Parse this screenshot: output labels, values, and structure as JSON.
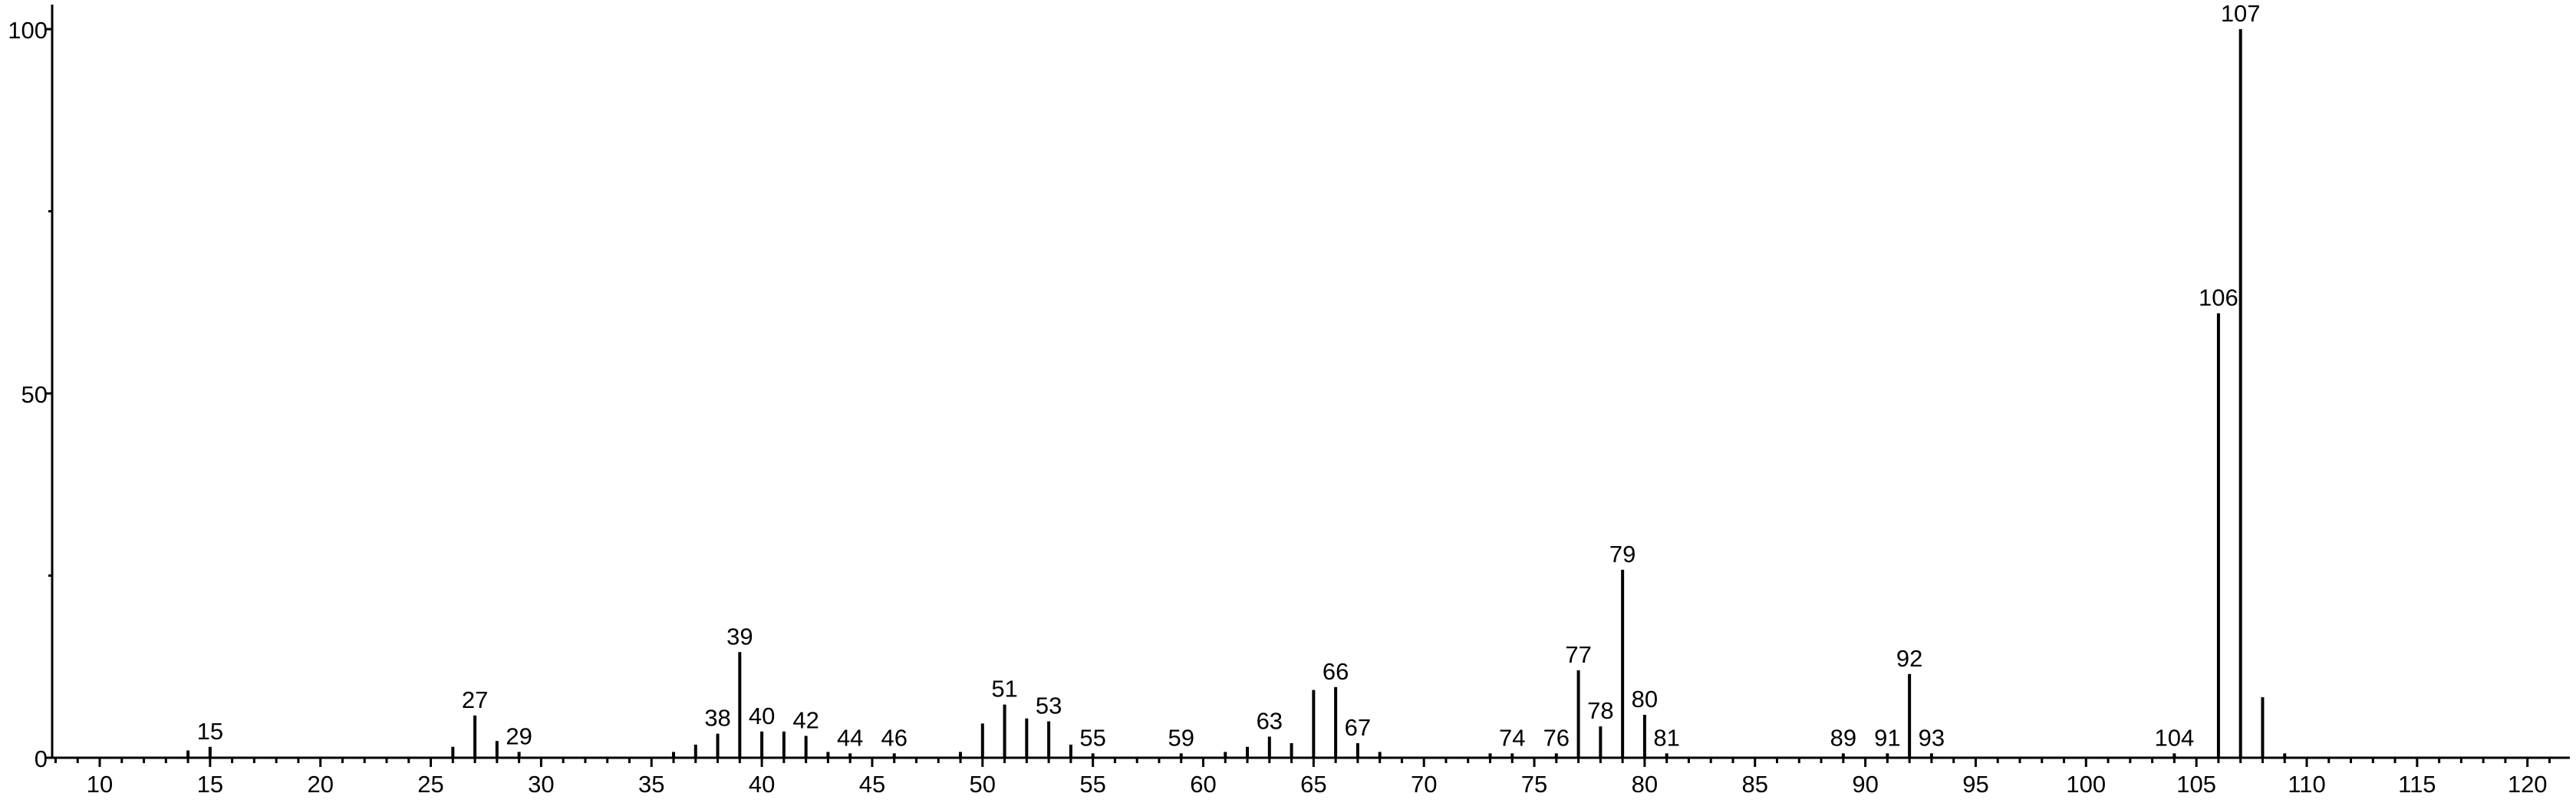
{
  "chart_data": {
    "type": "bar",
    "title": "",
    "xlabel": "",
    "ylabel": "",
    "xlim": [
      8,
      122
    ],
    "ylim": [
      0,
      102
    ],
    "grid": false,
    "legend": "none",
    "bar_color": "#000000",
    "x_major_ticks": [
      10,
      15,
      20,
      25,
      30,
      35,
      40,
      45,
      50,
      55,
      60,
      65,
      70,
      75,
      80,
      85,
      90,
      95,
      100,
      105,
      110,
      115,
      120
    ],
    "x_minor_step": 1,
    "y_major_ticks": [
      0,
      50,
      100
    ],
    "y_minor_ticks": [
      25,
      75
    ],
    "peaks": [
      {
        "mz": 14,
        "intensity": 1.0,
        "label": ""
      },
      {
        "mz": 15,
        "intensity": 1.5,
        "label": "15"
      },
      {
        "mz": 26,
        "intensity": 1.5,
        "label": ""
      },
      {
        "mz": 27,
        "intensity": 5.8,
        "label": "27"
      },
      {
        "mz": 28,
        "intensity": 2.3,
        "label": ""
      },
      {
        "mz": 29,
        "intensity": 0.8,
        "label": "29"
      },
      {
        "mz": 36,
        "intensity": 0.8,
        "label": ""
      },
      {
        "mz": 37,
        "intensity": 1.8,
        "label": ""
      },
      {
        "mz": 38,
        "intensity": 3.3,
        "label": "38"
      },
      {
        "mz": 39,
        "intensity": 14.5,
        "label": "39"
      },
      {
        "mz": 40,
        "intensity": 3.6,
        "label": "40"
      },
      {
        "mz": 41,
        "intensity": 3.6,
        "label": ""
      },
      {
        "mz": 42,
        "intensity": 3.0,
        "label": "42"
      },
      {
        "mz": 43,
        "intensity": 0.8,
        "label": ""
      },
      {
        "mz": 44,
        "intensity": 0.6,
        "label": "44"
      },
      {
        "mz": 46,
        "intensity": 0.6,
        "label": "46"
      },
      {
        "mz": 49,
        "intensity": 0.8,
        "label": ""
      },
      {
        "mz": 50,
        "intensity": 4.7,
        "label": ""
      },
      {
        "mz": 51,
        "intensity": 7.3,
        "label": "51"
      },
      {
        "mz": 52,
        "intensity": 5.4,
        "label": ""
      },
      {
        "mz": 53,
        "intensity": 5.0,
        "label": "53"
      },
      {
        "mz": 54,
        "intensity": 1.8,
        "label": ""
      },
      {
        "mz": 55,
        "intensity": 0.6,
        "label": "55"
      },
      {
        "mz": 59,
        "intensity": 0.6,
        "label": "59"
      },
      {
        "mz": 61,
        "intensity": 0.8,
        "label": ""
      },
      {
        "mz": 62,
        "intensity": 1.5,
        "label": ""
      },
      {
        "mz": 63,
        "intensity": 2.9,
        "label": "63"
      },
      {
        "mz": 64,
        "intensity": 2.0,
        "label": ""
      },
      {
        "mz": 65,
        "intensity": 9.3,
        "label": ""
      },
      {
        "mz": 66,
        "intensity": 9.7,
        "label": "66"
      },
      {
        "mz": 67,
        "intensity": 2.0,
        "label": "67"
      },
      {
        "mz": 68,
        "intensity": 0.8,
        "label": ""
      },
      {
        "mz": 73,
        "intensity": 0.6,
        "label": ""
      },
      {
        "mz": 74,
        "intensity": 0.6,
        "label": "74"
      },
      {
        "mz": 76,
        "intensity": 0.6,
        "label": "76"
      },
      {
        "mz": 77,
        "intensity": 12.0,
        "label": "77"
      },
      {
        "mz": 78,
        "intensity": 4.3,
        "label": "78"
      },
      {
        "mz": 79,
        "intensity": 25.8,
        "label": "79"
      },
      {
        "mz": 80,
        "intensity": 5.9,
        "label": "80"
      },
      {
        "mz": 81,
        "intensity": 0.6,
        "label": "81"
      },
      {
        "mz": 89,
        "intensity": 0.6,
        "label": "89"
      },
      {
        "mz": 91,
        "intensity": 0.6,
        "label": "91"
      },
      {
        "mz": 92,
        "intensity": 11.5,
        "label": "92"
      },
      {
        "mz": 93,
        "intensity": 0.6,
        "label": "93"
      },
      {
        "mz": 104,
        "intensity": 0.6,
        "label": "104"
      },
      {
        "mz": 106,
        "intensity": 61.0,
        "label": "106"
      },
      {
        "mz": 107,
        "intensity": 100.0,
        "label": "107"
      },
      {
        "mz": 108,
        "intensity": 8.3,
        "label": ""
      },
      {
        "mz": 109,
        "intensity": 0.6,
        "label": ""
      }
    ]
  }
}
